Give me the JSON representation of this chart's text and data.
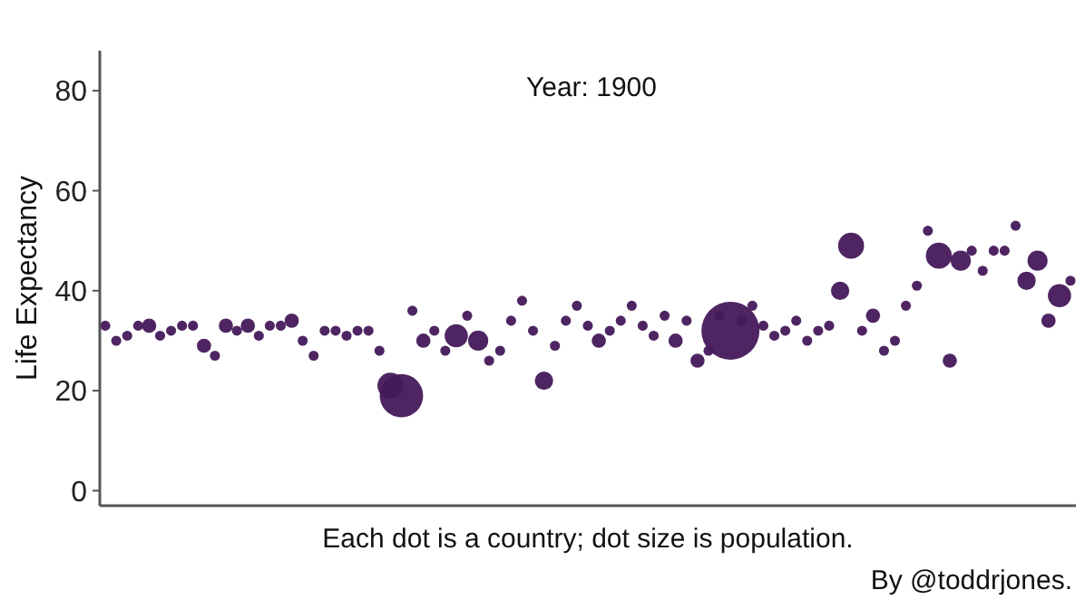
{
  "chart_data": {
    "type": "bubble",
    "title": "Year: 1900",
    "xlabel": "Each dot is a country; dot size is population.",
    "ylabel": "Life Expectancy",
    "annotations": [
      "By @toddrjones."
    ],
    "categories": [
      null,
      null,
      null,
      null,
      null,
      null,
      null,
      null,
      null,
      null,
      null,
      null,
      null,
      null,
      null,
      null,
      null,
      null,
      null,
      null,
      null,
      null,
      null,
      null,
      null,
      null,
      null,
      null,
      null,
      null,
      null,
      null,
      null,
      null,
      null,
      null,
      null,
      null,
      null,
      null,
      null,
      null,
      null,
      null,
      null,
      null,
      null,
      null,
      null,
      null,
      null,
      null,
      null,
      null,
      null,
      null,
      null,
      null,
      null,
      null,
      null,
      null,
      null,
      null,
      null,
      null,
      null,
      null,
      null,
      null,
      null,
      null,
      null,
      null,
      null,
      null,
      null,
      null,
      null,
      null,
      null,
      null,
      null,
      null,
      null,
      null,
      null,
      null,
      null
    ],
    "values": [
      33,
      30,
      31,
      33,
      33,
      31,
      32,
      33,
      33,
      29,
      27,
      33,
      32,
      33,
      31,
      33,
      33,
      34,
      30,
      27,
      32,
      32,
      31,
      32,
      32,
      28,
      21,
      19,
      36,
      30,
      32,
      28,
      31,
      35,
      30,
      26,
      28,
      34,
      38,
      32,
      22,
      29,
      34,
      37,
      33,
      30,
      32,
      34,
      37,
      33,
      31,
      35,
      30,
      34,
      26,
      28,
      35,
      32,
      34,
      37,
      33,
      31,
      32,
      34,
      30,
      32,
      33,
      40,
      49,
      32,
      35,
      28,
      30,
      37,
      41,
      52,
      47,
      26,
      46,
      48,
      44,
      48,
      48,
      53,
      42,
      46,
      34,
      39,
      42
    ],
    "sizes": [
      0.03,
      0.03,
      0.03,
      0.03,
      0.06,
      0.03,
      0.03,
      0.03,
      0.03,
      0.06,
      0.03,
      0.06,
      0.03,
      0.06,
      0.03,
      0.03,
      0.03,
      0.06,
      0.03,
      0.03,
      0.03,
      0.03,
      0.03,
      0.03,
      0.03,
      0.03,
      0.2,
      0.56,
      0.03,
      0.06,
      0.03,
      0.03,
      0.16,
      0.03,
      0.12,
      0.03,
      0.03,
      0.03,
      0.03,
      0.03,
      0.1,
      0.03,
      0.03,
      0.03,
      0.03,
      0.06,
      0.03,
      0.03,
      0.03,
      0.03,
      0.03,
      0.03,
      0.06,
      0.03,
      0.06,
      0.03,
      0.03,
      1,
      0.03,
      0.03,
      0.03,
      0.03,
      0.03,
      0.03,
      0.03,
      0.03,
      0.03,
      0.1,
      0.2,
      0.03,
      0.06,
      0.03,
      0.03,
      0.03,
      0.03,
      0.03,
      0.2,
      0.06,
      0.12,
      0.03,
      0.03,
      0.03,
      0.03,
      0.03,
      0.1,
      0.12,
      0.06,
      0.16,
      0.03
    ],
    "color": "#44195a",
    "ylim": [
      -3,
      88
    ],
    "yticks": [
      0,
      20,
      40,
      60,
      80
    ],
    "grid": false
  }
}
